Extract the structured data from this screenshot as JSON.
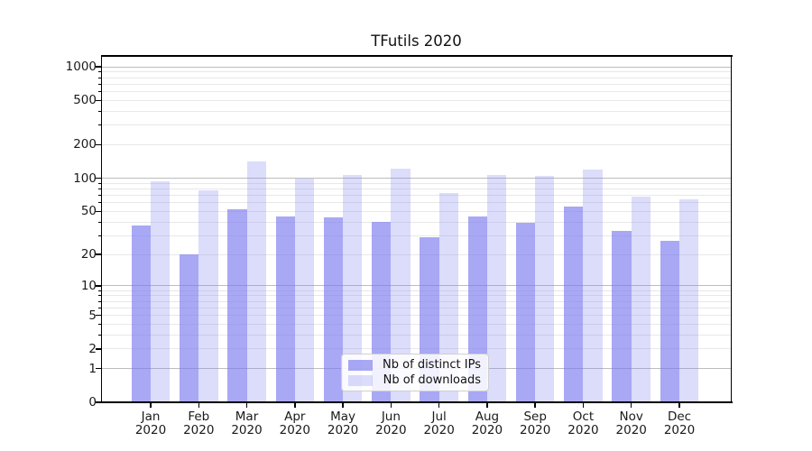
{
  "chart_data": {
    "type": "bar",
    "title": "TFutils 2020",
    "categories": [
      "Jan",
      "Feb",
      "Mar",
      "Apr",
      "May",
      "Jun",
      "Jul",
      "Aug",
      "Sep",
      "Oct",
      "Nov",
      "Dec"
    ],
    "x_tick_second_line": "2020",
    "series": [
      {
        "name": "Nb of distinct IPs",
        "values": [
          37,
          20,
          52,
          45,
          44,
          40,
          29,
          45,
          39,
          55,
          33,
          27
        ]
      },
      {
        "name": "Nb of downloads",
        "values": [
          94,
          78,
          141,
          99,
          107,
          122,
          74,
          106,
          105,
          119,
          68,
          64
        ]
      }
    ],
    "y_axis": {
      "scale": "log1p",
      "tick_labels": [
        "0",
        "1",
        "2",
        "5",
        "10",
        "20",
        "50",
        "100",
        "200",
        "500",
        "1000"
      ],
      "tick_values": [
        0,
        1,
        2,
        5,
        10,
        20,
        50,
        100,
        200,
        500,
        1000
      ],
      "major_grid_values": [
        1,
        10,
        100,
        1000
      ],
      "minor_grid_values": [
        2,
        3,
        4,
        5,
        6,
        7,
        8,
        9,
        20,
        30,
        40,
        50,
        60,
        70,
        80,
        90,
        200,
        300,
        400,
        500,
        600,
        700,
        800,
        900
      ],
      "ylim": [
        0,
        1250
      ]
    },
    "legend": {
      "position": "lower center",
      "labels": [
        "Nb of distinct IPs",
        "Nb of downloads"
      ]
    },
    "grid": true
  },
  "colors": {
    "bar_distinct_ips": "rgba(121,121,238,0.65)",
    "bar_downloads": "rgba(121,121,238,0.26)",
    "grid_major": "#bdbdbd",
    "grid_minor": "#e8e8e8",
    "spine": "#000000",
    "text": "#1a1a1a",
    "legend_border": "#cfcfcf",
    "legend_background": "rgba(255,255,255,0.85)",
    "background": "#ffffff"
  }
}
